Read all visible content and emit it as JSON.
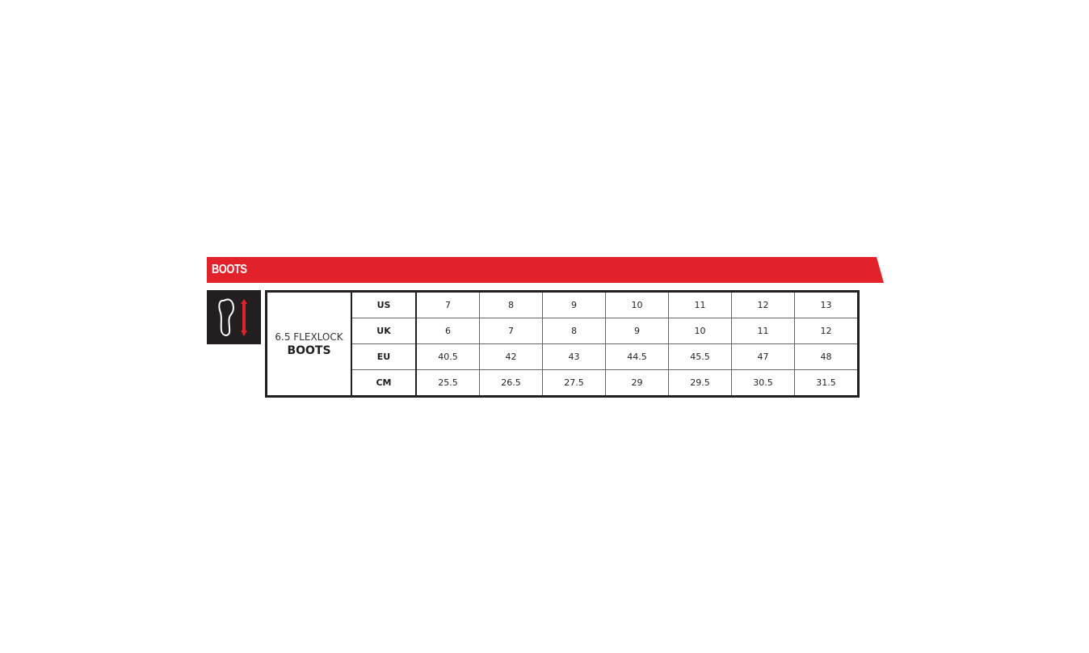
{
  "banner": {
    "title": "BOOTS",
    "color": "#e2222a"
  },
  "icon": {
    "name": "foot-length-icon",
    "arrow_color": "#e2222a"
  },
  "table": {
    "product_line1": "6.5 FLEXLOCK",
    "product_line2": "BOOTS",
    "rows": [
      {
        "label": "US",
        "values": [
          "7",
          "8",
          "9",
          "10",
          "11",
          "12",
          "13"
        ]
      },
      {
        "label": "UK",
        "values": [
          "6",
          "7",
          "8",
          "9",
          "10",
          "11",
          "12"
        ]
      },
      {
        "label": "EU",
        "values": [
          "40.5",
          "42",
          "43",
          "44.5",
          "45.5",
          "47",
          "48"
        ]
      },
      {
        "label": "CM",
        "values": [
          "25.5",
          "26.5",
          "27.5",
          "29",
          "29.5",
          "30.5",
          "31.5"
        ]
      }
    ]
  }
}
